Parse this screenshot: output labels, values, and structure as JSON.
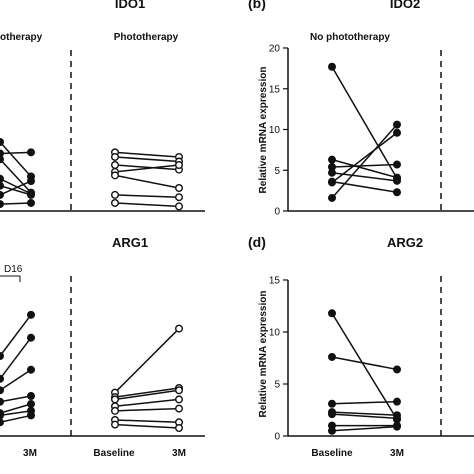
{
  "colors": {
    "ink": "#111111",
    "background": "#ffffff"
  },
  "chart_data": [
    {
      "panel": "",
      "title": "IDO1",
      "type": "line",
      "groups": [
        "otherapy",
        "Phototherapy"
      ],
      "categories": [
        "",
        ""
      ],
      "ylabel": "",
      "yticks": [],
      "ylim": [
        0,
        7
      ],
      "filled_pairs": [
        [
          2.5,
          2.55
        ],
        [
          3.0,
          1.5
        ],
        [
          2.25,
          0.8
        ],
        [
          1.4,
          0.75
        ],
        [
          1.1,
          0.7
        ],
        [
          0.7,
          1.3
        ],
        [
          0.3,
          0.35
        ]
      ],
      "open_pairs": [
        [
          2.55,
          2.35
        ],
        [
          2.35,
          2.15
        ],
        [
          2.0,
          1.8
        ],
        [
          1.7,
          2.0
        ],
        [
          1.55,
          1.0
        ],
        [
          0.7,
          0.6
        ],
        [
          0.35,
          0.2
        ]
      ]
    },
    {
      "panel": "(b)",
      "title": "IDO2",
      "type": "line",
      "groups": [
        "No phototherapy"
      ],
      "categories": [
        "",
        ""
      ],
      "ylabel": "Relative mRNA expression",
      "yticks": [
        0,
        5,
        10,
        15,
        20
      ],
      "ylim": [
        0,
        20
      ],
      "filled_pairs": [
        [
          17.7,
          4.0
        ],
        [
          1.6,
          10.6
        ],
        [
          3.5,
          9.6
        ],
        [
          6.3,
          4.1
        ],
        [
          5.4,
          5.7
        ],
        [
          4.7,
          3.7
        ],
        [
          3.6,
          2.3
        ]
      ]
    },
    {
      "panel": "",
      "title": "ARG1",
      "type": "line",
      "groups": [],
      "annotation": "D16",
      "categories": [
        "",
        "3M"
      ],
      "ylabel": "",
      "yticks": [],
      "ylim": [
        0,
        7
      ],
      "filled_pairs": [
        [
          3.5,
          5.3
        ],
        [
          2.5,
          4.3
        ],
        [
          2.0,
          2.9
        ],
        [
          1.5,
          1.75
        ],
        [
          1.0,
          1.4
        ],
        [
          0.9,
          1.1
        ],
        [
          0.6,
          0.9
        ]
      ],
      "open_pairs": [
        [
          1.9,
          4.7
        ],
        [
          1.7,
          2.1
        ],
        [
          1.6,
          2.0
        ],
        [
          1.3,
          1.6
        ],
        [
          1.1,
          1.2
        ],
        [
          0.7,
          0.6
        ],
        [
          0.5,
          0.35
        ]
      ]
    },
    {
      "panel": "(d)",
      "title": "ARG2",
      "type": "line",
      "groups": [],
      "categories": [
        "Baseline",
        "3M"
      ],
      "ylabel": "Relative mRNA expression",
      "yticks": [
        0,
        5,
        10,
        15
      ],
      "ylim": [
        0,
        15
      ],
      "filled_pairs": [
        [
          11.8,
          1.6
        ],
        [
          7.6,
          6.4
        ],
        [
          3.1,
          3.3
        ],
        [
          2.3,
          2.0
        ],
        [
          2.1,
          1.7
        ],
        [
          1.0,
          1.0
        ],
        [
          0.5,
          0.9
        ]
      ]
    }
  ],
  "panel_bottom": {
    "categories": [
      "Baseline",
      "3M"
    ]
  }
}
